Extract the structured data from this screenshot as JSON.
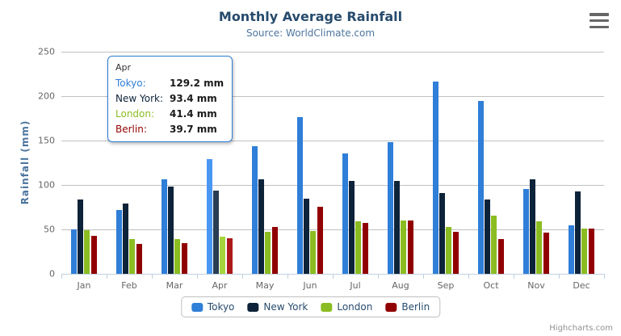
{
  "header": {
    "menu_icon": "hamburger-icon"
  },
  "chart_data": {
    "type": "bar",
    "title": "Monthly Average Rainfall",
    "subtitle": "Source: WorldClimate.com",
    "xlabel": "",
    "ylabel": "Rainfall (mm)",
    "categories": [
      "Jan",
      "Feb",
      "Mar",
      "Apr",
      "May",
      "Jun",
      "Jul",
      "Aug",
      "Sep",
      "Oct",
      "Nov",
      "Dec"
    ],
    "series": [
      {
        "name": "Tokyo",
        "color": "#2f7ed8",
        "hover_color": "#4997f1",
        "values": [
          49.9,
          71.5,
          106.4,
          129.2,
          144.0,
          176.0,
          135.6,
          148.5,
          216.4,
          194.1,
          95.6,
          54.4
        ]
      },
      {
        "name": "New York",
        "color": "#0d233a",
        "hover_color": "#273d54",
        "values": [
          83.6,
          78.8,
          98.5,
          93.4,
          106.0,
          84.5,
          105.0,
          104.3,
          91.2,
          83.5,
          106.6,
          92.3
        ]
      },
      {
        "name": "London",
        "color": "#8bbc21",
        "hover_color": "#a5d63b",
        "values": [
          48.9,
          38.8,
          39.3,
          41.4,
          47.0,
          48.3,
          59.0,
          59.6,
          52.4,
          65.2,
          59.3,
          51.2
        ]
      },
      {
        "name": "Berlin",
        "color": "#910000",
        "hover_color": "#ab1a1a",
        "values": [
          42.4,
          33.2,
          34.5,
          39.7,
          52.6,
          75.5,
          57.4,
          60.4,
          47.6,
          39.1,
          46.8,
          51.1
        ]
      }
    ],
    "ylim": [
      0,
      250
    ],
    "yticks": [
      0,
      50,
      100,
      150,
      200,
      250
    ],
    "grid": true,
    "legend_position": "bottom",
    "value_suffix": "mm",
    "highlighted_category": "Apr",
    "highlighted_category_index": 3,
    "colors": {
      "gridline": "#c0c0c0",
      "axis_line": "#c0d0e0",
      "axis_label": "#666666",
      "title": "#274b6d",
      "subtitle": "#4d759e",
      "credits": "#909090"
    }
  },
  "tooltip": {
    "header": "Apr",
    "rows": [
      {
        "name": "Tokyo",
        "color": "#2f7ed8",
        "value": "129.2",
        "suffix": "mm"
      },
      {
        "name": "New York",
        "color": "#0d233a",
        "value": "93.4",
        "suffix": "mm"
      },
      {
        "name": "London",
        "color": "#8bbc21",
        "value": "41.4",
        "suffix": "mm"
      },
      {
        "name": "Berlin",
        "color": "#910000",
        "value": "39.7",
        "suffix": "mm"
      }
    ]
  },
  "credits": {
    "label": "Highcharts.com"
  }
}
